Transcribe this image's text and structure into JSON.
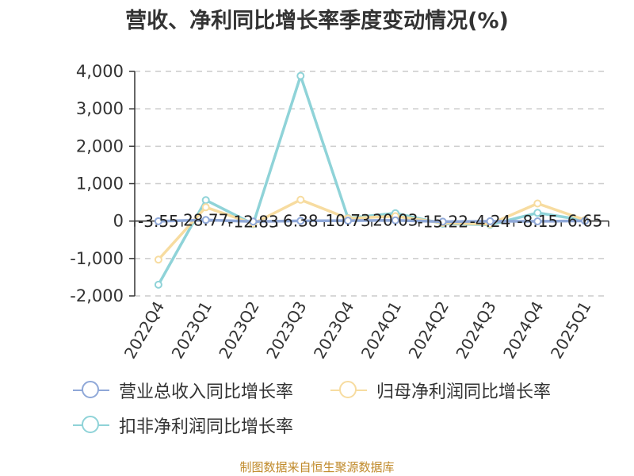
{
  "chart_data": {
    "type": "line",
    "title": "营收、净利同比增长率季度变动情况(%)",
    "categories": [
      "2022Q4",
      "2023Q1",
      "2023Q2",
      "2023Q3",
      "2023Q4",
      "2024Q1",
      "2024Q2",
      "2024Q3",
      "2024Q4",
      "2025Q1"
    ],
    "ylim": [
      -2000,
      4000
    ],
    "yticks": [
      "4,000",
      "3,000",
      "2,000",
      "1,000",
      "0",
      "-1,000",
      "-2,000"
    ],
    "ytick_values": [
      4000,
      3000,
      2000,
      1000,
      0,
      -1000,
      -2000
    ],
    "grid": true,
    "legend_position": "bottom",
    "series": [
      {
        "name": "营业总收入同比增长率",
        "color": "#8fa8d8",
        "values": [
          -3.55,
          28.77,
          -12.83,
          6.38,
          10.73,
          20.03,
          -15.22,
          -4.24,
          -8.15,
          6.65
        ],
        "labels": [
          "-3.55",
          "28.77",
          "-12.83",
          "6.38",
          "10.73",
          "20.03",
          "-15.22",
          "-4.24",
          "-8.15",
          "6.65"
        ]
      },
      {
        "name": "归母净利润同比增长率",
        "color": "#f7dca0",
        "values": [
          -1030,
          370,
          -70,
          570,
          70,
          130,
          -50,
          -80,
          470,
          30
        ]
      },
      {
        "name": "扣非净利润同比增长率",
        "color": "#8fd3d8",
        "values": [
          -1700,
          560,
          -80,
          3880,
          80,
          210,
          -70,
          -100,
          220,
          20
        ]
      }
    ],
    "source": "制图数据来自恒生聚源数据库"
  }
}
